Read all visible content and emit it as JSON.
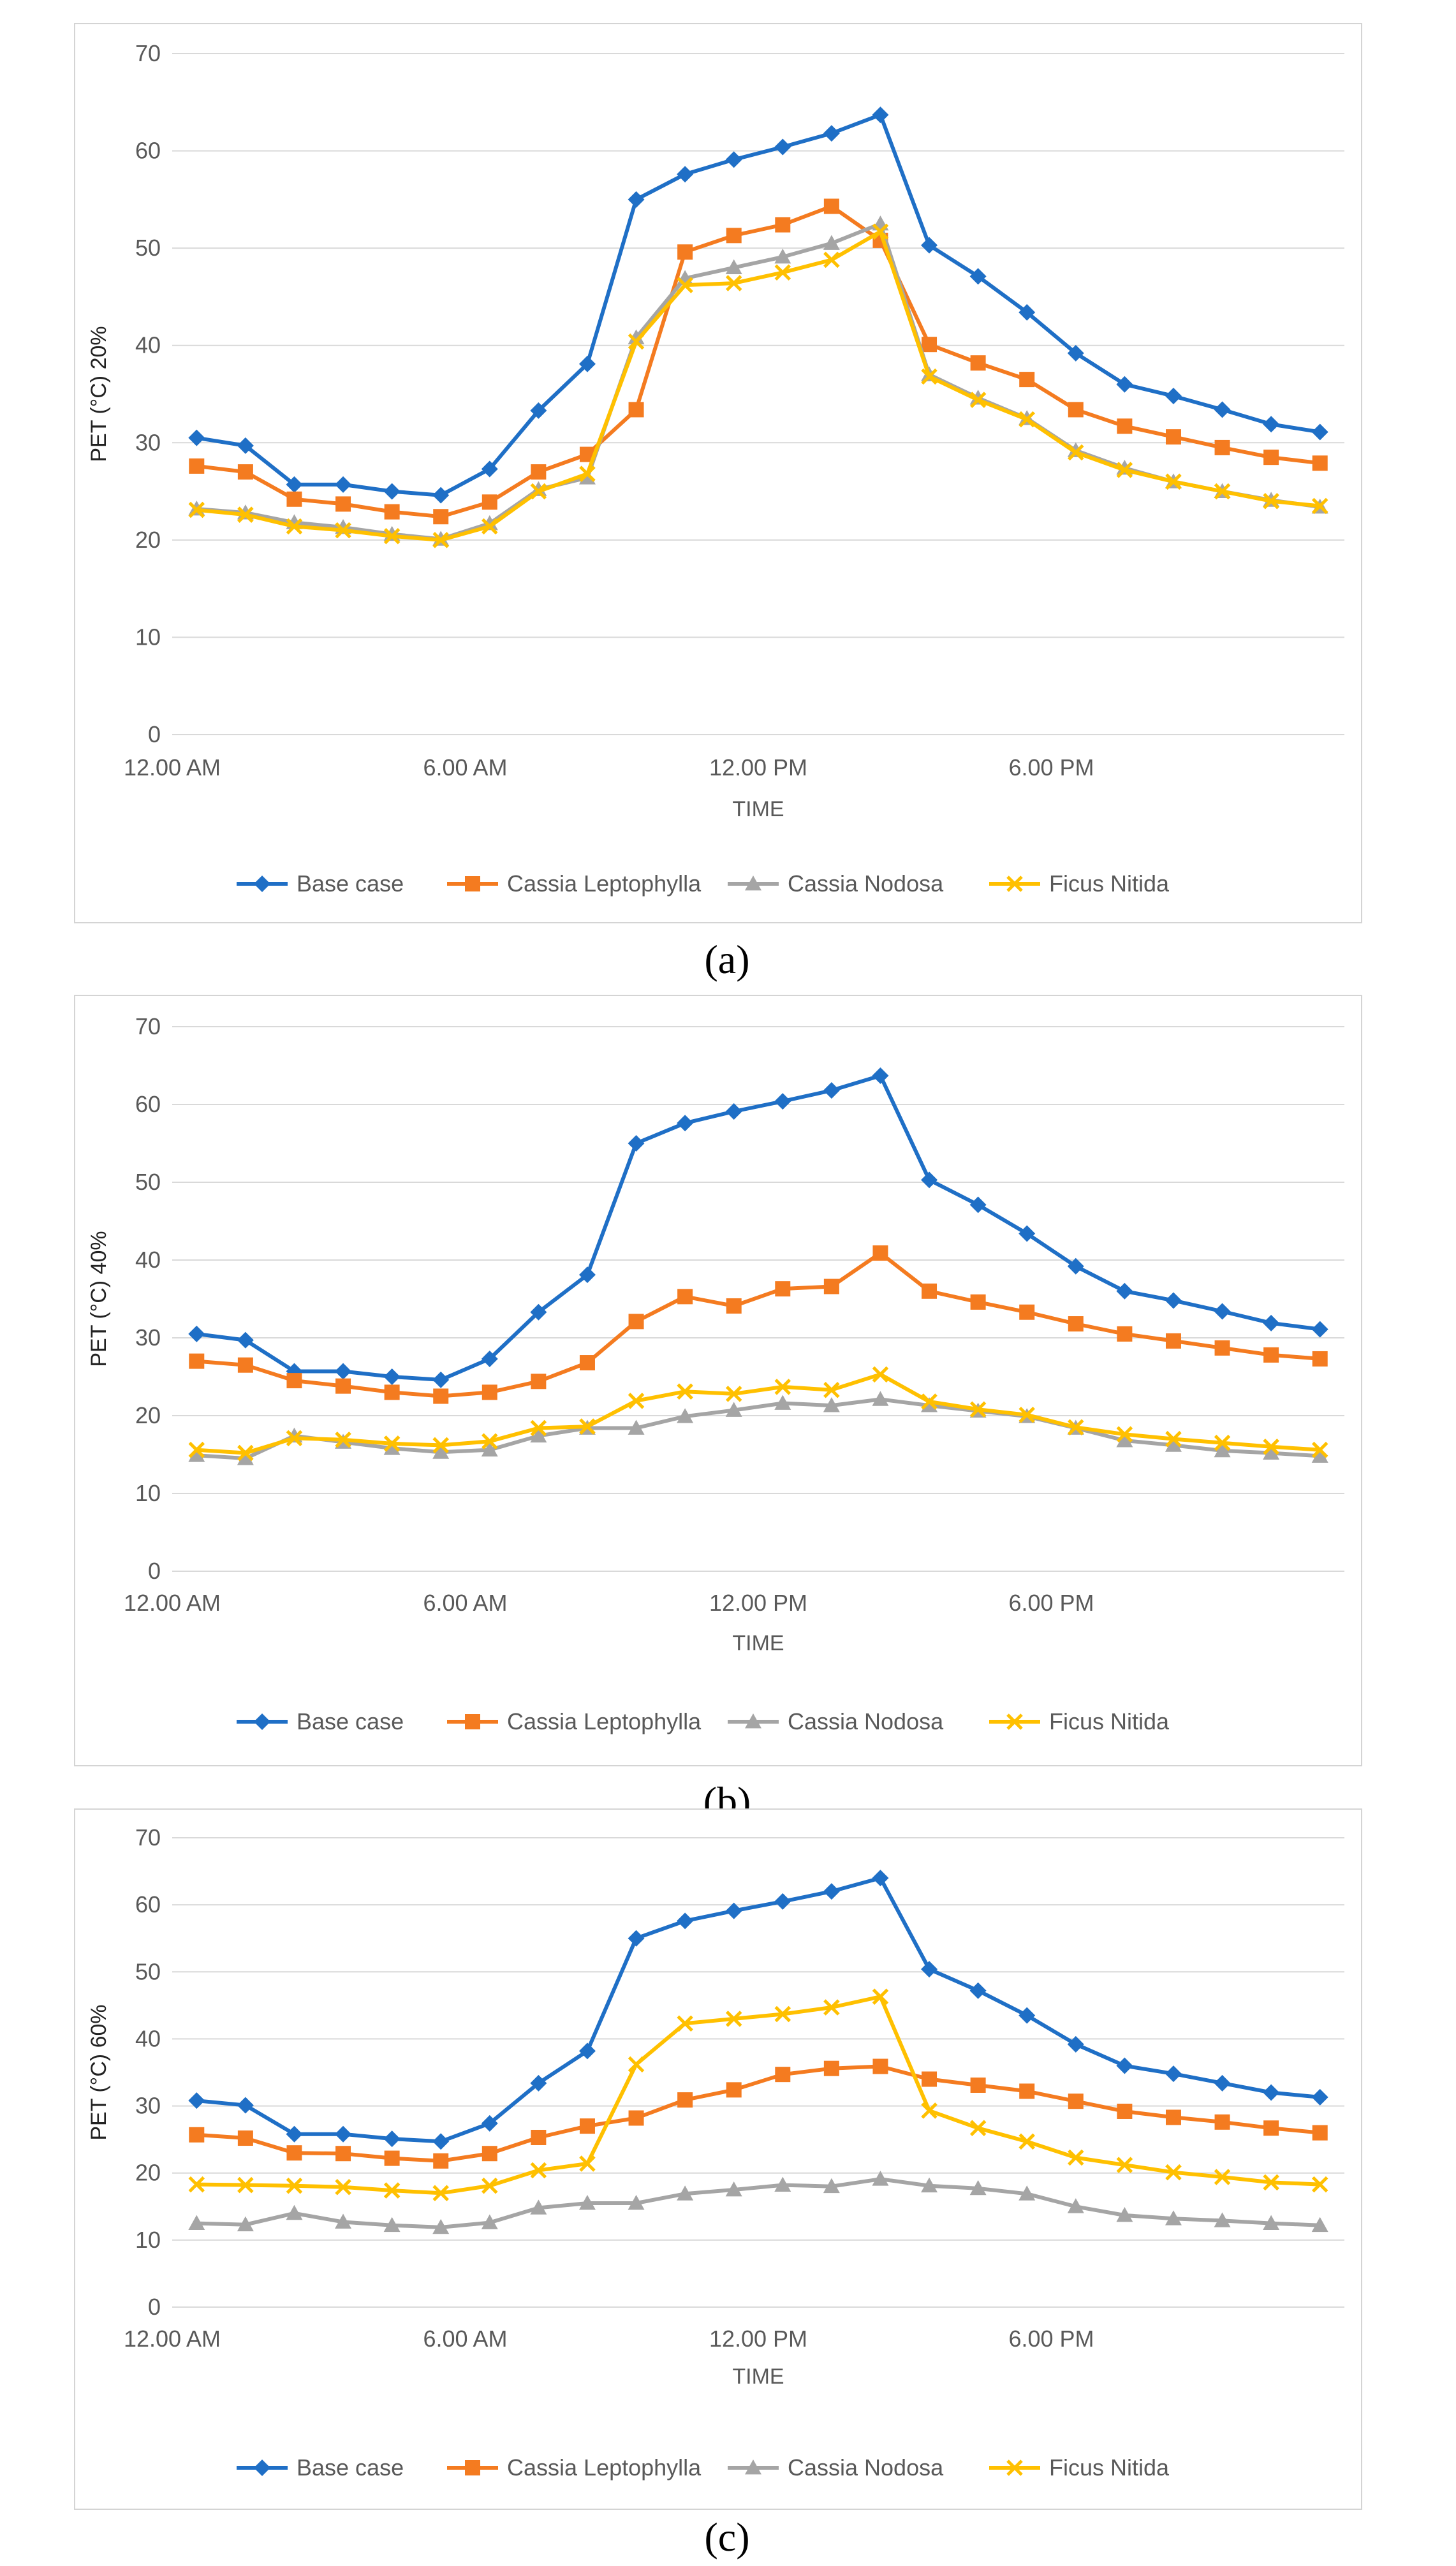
{
  "colors": {
    "base_case": "#1f6fc6",
    "cassia_leptophylla": "#f47b20",
    "cassia_nodosa": "#a5a5a5",
    "ficus_nitida": "#ffc000",
    "grid": "#d9d9d9",
    "text": "#595959"
  },
  "chart_data": [
    {
      "type": "line",
      "caption": "(a)",
      "title": "",
      "xlabel": "TIME",
      "ylabel": "PET (°C) 20%",
      "ylim": [
        0,
        70
      ],
      "yticks": [
        0,
        10,
        20,
        30,
        40,
        50,
        60,
        70
      ],
      "x": [
        0,
        1,
        2,
        3,
        4,
        5,
        6,
        7,
        8,
        9,
        10,
        11,
        12,
        13,
        14,
        15,
        16,
        17,
        18,
        19,
        20,
        21,
        22,
        23
      ],
      "xtick_labels": [
        {
          "x": 0,
          "label": "12.00 AM"
        },
        {
          "x": 6,
          "label": "6.00 AM"
        },
        {
          "x": 12,
          "label": "12.00 PM"
        },
        {
          "x": 18,
          "label": "6.00 PM"
        }
      ],
      "legend": "bottom",
      "series": [
        {
          "name": "Base case",
          "key": "base_case",
          "marker": "diamond",
          "values": [
            30.5,
            29.7,
            25.7,
            25.7,
            25.0,
            24.6,
            27.3,
            33.3,
            38.1,
            55.0,
            57.6,
            59.1,
            60.4,
            61.8,
            63.7,
            50.3,
            47.1,
            43.4,
            39.2,
            36.0,
            34.8,
            33.4,
            31.9,
            31.1
          ]
        },
        {
          "name": "Cassia Leptophylla",
          "key": "cassia_leptophylla",
          "marker": "square",
          "values": [
            27.6,
            27.0,
            24.2,
            23.7,
            22.9,
            22.4,
            23.9,
            27.0,
            28.8,
            33.4,
            49.6,
            51.3,
            52.4,
            54.3,
            50.8,
            40.1,
            38.2,
            36.5,
            33.4,
            31.7,
            30.6,
            29.5,
            28.5,
            27.9
          ]
        },
        {
          "name": "Cassia Nodosa",
          "key": "cassia_nodosa",
          "marker": "triangle",
          "values": [
            23.2,
            22.8,
            21.8,
            21.3,
            20.6,
            20.1,
            21.7,
            25.2,
            26.4,
            40.8,
            46.9,
            48.0,
            49.1,
            50.5,
            52.5,
            37.0,
            34.6,
            32.5,
            29.2,
            27.4,
            26.0,
            25.0,
            24.1,
            23.4
          ]
        },
        {
          "name": "Ficus Nitida",
          "key": "ficus_nitida",
          "marker": "x",
          "values": [
            23.1,
            22.6,
            21.4,
            21.0,
            20.4,
            20.0,
            21.4,
            25.0,
            26.8,
            40.4,
            46.2,
            46.4,
            47.5,
            48.8,
            51.7,
            36.8,
            34.4,
            32.4,
            29.0,
            27.2,
            26.0,
            25.0,
            24.0,
            23.5
          ]
        }
      ]
    },
    {
      "type": "line",
      "caption": "(b)",
      "title": "",
      "xlabel": "TIME",
      "ylabel": "PET (°C) 40%",
      "ylim": [
        0,
        70
      ],
      "yticks": [
        0,
        10,
        20,
        30,
        40,
        50,
        60,
        70
      ],
      "x": [
        0,
        1,
        2,
        3,
        4,
        5,
        6,
        7,
        8,
        9,
        10,
        11,
        12,
        13,
        14,
        15,
        16,
        17,
        18,
        19,
        20,
        21,
        22,
        23
      ],
      "xtick_labels": [
        {
          "x": 0,
          "label": "12.00 AM"
        },
        {
          "x": 6,
          "label": "6.00 AM"
        },
        {
          "x": 12,
          "label": "12.00 PM"
        },
        {
          "x": 18,
          "label": "6.00 PM"
        }
      ],
      "legend": "bottom",
      "series": [
        {
          "name": "Base case",
          "key": "base_case",
          "marker": "diamond",
          "values": [
            30.5,
            29.7,
            25.7,
            25.7,
            25.0,
            24.6,
            27.3,
            33.3,
            38.1,
            55.0,
            57.6,
            59.1,
            60.4,
            61.8,
            63.7,
            50.3,
            47.1,
            43.4,
            39.2,
            36.0,
            34.8,
            33.4,
            31.9,
            31.1
          ]
        },
        {
          "name": "Cassia Leptophylla",
          "key": "cassia_leptophylla",
          "marker": "square",
          "values": [
            27.0,
            26.5,
            24.5,
            23.8,
            23.0,
            22.5,
            23.0,
            24.4,
            26.8,
            32.1,
            35.3,
            34.1,
            36.3,
            36.6,
            40.9,
            36.0,
            34.6,
            33.3,
            31.8,
            30.5,
            29.6,
            28.7,
            27.8,
            27.3
          ]
        },
        {
          "name": "Cassia Nodosa",
          "key": "cassia_nodosa",
          "marker": "triangle",
          "values": [
            14.9,
            14.5,
            17.4,
            16.6,
            15.8,
            15.3,
            15.6,
            17.4,
            18.4,
            18.4,
            19.9,
            20.7,
            21.6,
            21.3,
            22.1,
            21.3,
            20.6,
            19.9,
            18.4,
            16.8,
            16.2,
            15.5,
            15.2,
            14.8
          ]
        },
        {
          "name": "Ficus Nitida",
          "key": "ficus_nitida",
          "marker": "x",
          "values": [
            15.6,
            15.2,
            17.1,
            16.9,
            16.4,
            16.2,
            16.7,
            18.4,
            18.6,
            21.9,
            23.1,
            22.8,
            23.7,
            23.3,
            25.3,
            21.8,
            20.8,
            20.1,
            18.5,
            17.6,
            17.0,
            16.5,
            16.0,
            15.6
          ]
        }
      ]
    },
    {
      "type": "line",
      "caption": "(c)",
      "title": "",
      "xlabel": "TIME",
      "ylabel": "PET (°C) 60%",
      "ylim": [
        0,
        70
      ],
      "yticks": [
        0,
        10,
        20,
        30,
        40,
        50,
        60,
        70
      ],
      "x": [
        0,
        1,
        2,
        3,
        4,
        5,
        6,
        7,
        8,
        9,
        10,
        11,
        12,
        13,
        14,
        15,
        16,
        17,
        18,
        19,
        20,
        21,
        22,
        23
      ],
      "xtick_labels": [
        {
          "x": 0,
          "label": "12.00 AM"
        },
        {
          "x": 6,
          "label": "6.00 AM"
        },
        {
          "x": 12,
          "label": "12.00 PM"
        },
        {
          "x": 18,
          "label": "6.00 PM"
        }
      ],
      "legend": "bottom",
      "series": [
        {
          "name": "Base case",
          "key": "base_case",
          "marker": "diamond",
          "values": [
            30.8,
            30.1,
            25.8,
            25.8,
            25.1,
            24.7,
            27.4,
            33.4,
            38.2,
            55.0,
            57.6,
            59.1,
            60.5,
            62.0,
            64.0,
            50.4,
            47.2,
            43.5,
            39.2,
            36.0,
            34.8,
            33.4,
            32.0,
            31.3
          ]
        },
        {
          "name": "Cassia Leptophylla",
          "key": "cassia_leptophylla",
          "marker": "square",
          "values": [
            25.7,
            25.2,
            23.0,
            22.9,
            22.2,
            21.8,
            22.9,
            25.3,
            27.0,
            28.2,
            30.9,
            32.4,
            34.7,
            35.6,
            35.9,
            34.0,
            33.1,
            32.2,
            30.7,
            29.2,
            28.3,
            27.6,
            26.7,
            26.0
          ]
        },
        {
          "name": "Cassia Nodosa",
          "key": "cassia_nodosa",
          "marker": "triangle",
          "values": [
            12.5,
            12.3,
            14.0,
            12.7,
            12.2,
            11.9,
            12.6,
            14.8,
            15.5,
            15.5,
            16.9,
            17.5,
            18.2,
            18.0,
            19.1,
            18.1,
            17.7,
            16.9,
            15.0,
            13.7,
            13.2,
            12.9,
            12.5,
            12.2
          ]
        },
        {
          "name": "Ficus Nitida",
          "key": "ficus_nitida",
          "marker": "x",
          "values": [
            18.3,
            18.2,
            18.1,
            17.9,
            17.4,
            17.0,
            18.1,
            20.4,
            21.4,
            36.2,
            42.3,
            43.0,
            43.7,
            44.7,
            46.3,
            29.3,
            26.7,
            24.7,
            22.3,
            21.2,
            20.1,
            19.4,
            18.6,
            18.3
          ]
        }
      ]
    }
  ]
}
